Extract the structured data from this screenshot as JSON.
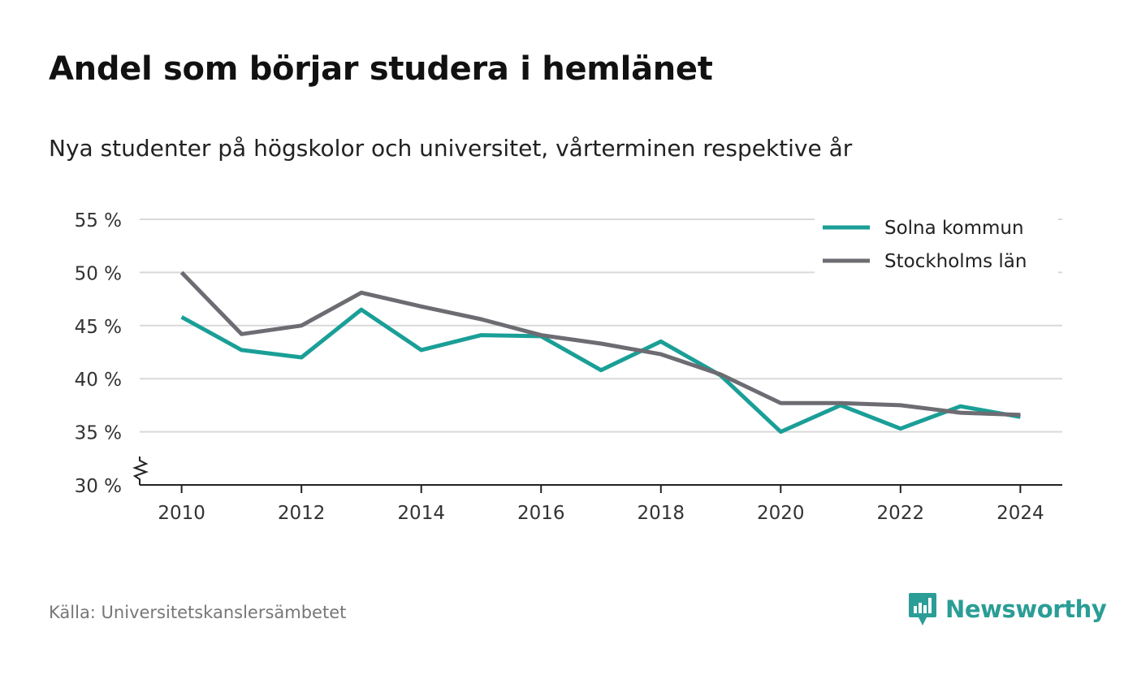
{
  "title": "Andel som börjar studera i hemlänet",
  "subtitle": "Nya studenter på högskolor och universitet, vårterminen respektive år",
  "source": "Källa: Universitetskanslersämbetet",
  "brand": {
    "name": "Newsworthy",
    "icon": "newsworthy-logo-icon",
    "color": "#2a9d96"
  },
  "chart_data": {
    "type": "line",
    "title": "Andel som börjar studera i hemlänet",
    "subtitle": "Nya studenter på högskolor och universitet, vårterminen respektive år",
    "x": [
      2010,
      2011,
      2012,
      2013,
      2014,
      2015,
      2016,
      2017,
      2018,
      2019,
      2020,
      2021,
      2022,
      2023,
      2024
    ],
    "x_ticks": [
      2010,
      2012,
      2014,
      2016,
      2018,
      2020,
      2022,
      2024
    ],
    "x_tick_labels": [
      "2010",
      "2012",
      "2014",
      "2016",
      "2018",
      "2020",
      "2022",
      "2024"
    ],
    "y_ticks": [
      30,
      35,
      40,
      45,
      50,
      55
    ],
    "y_tick_labels": [
      "30 %",
      "35 %",
      "40 %",
      "45 %",
      "50 %",
      "55 %"
    ],
    "ylim": [
      30,
      55
    ],
    "xlim": [
      2009.3,
      2024.7
    ],
    "y_axis_break": true,
    "grid": true,
    "legend_position": "top-right",
    "series": [
      {
        "name": "Solna kommun",
        "color": "#1a9f97",
        "values": [
          45.8,
          42.7,
          42.0,
          46.5,
          42.7,
          44.1,
          44.0,
          40.8,
          43.5,
          40.3,
          35.0,
          37.5,
          35.3,
          37.4,
          36.4
        ]
      },
      {
        "name": "Stockholms län",
        "color": "#6d6c72",
        "values": [
          50.0,
          44.2,
          45.0,
          48.1,
          46.8,
          45.6,
          44.1,
          43.3,
          42.3,
          40.4,
          37.7,
          37.7,
          37.5,
          36.8,
          36.6
        ]
      }
    ]
  }
}
